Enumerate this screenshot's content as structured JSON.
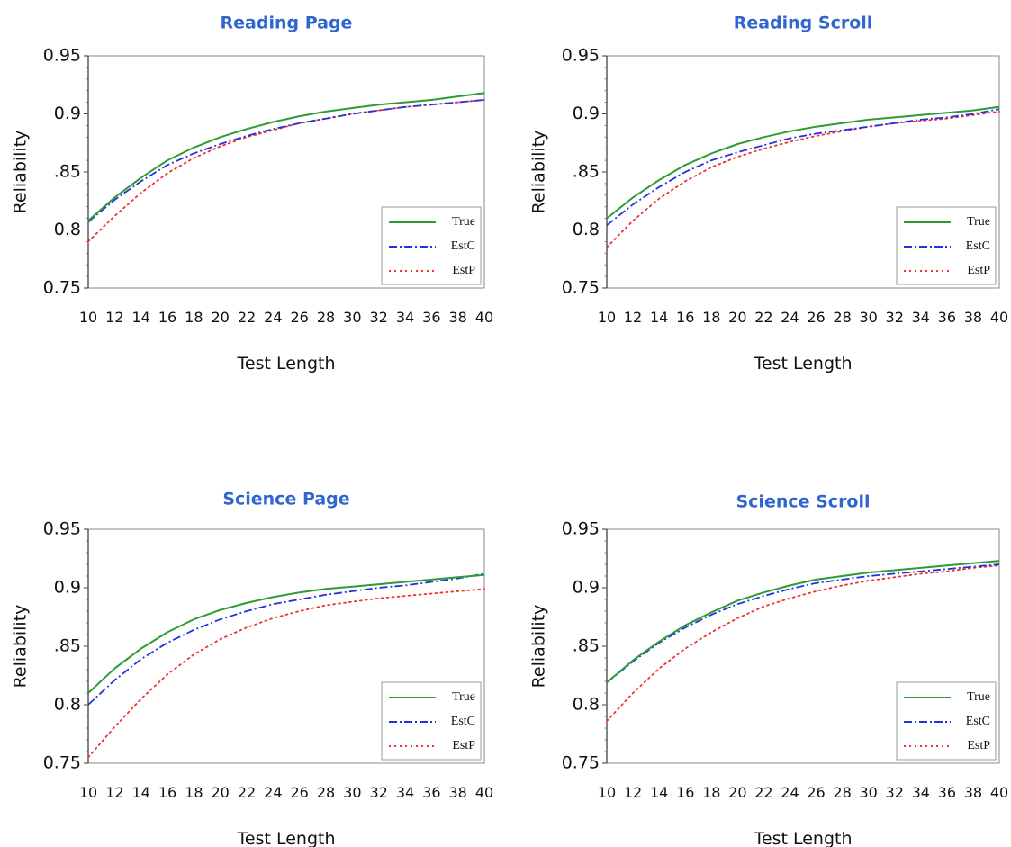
{
  "chart_data": [
    {
      "type": "line",
      "title": "Reading Page",
      "xlabel": "Test Length",
      "ylabel": "Reliability",
      "x": [
        10,
        12,
        14,
        16,
        18,
        20,
        22,
        24,
        26,
        28,
        30,
        32,
        34,
        36,
        38,
        40
      ],
      "xlim": [
        10,
        40
      ],
      "ylim": [
        0.75,
        0.95
      ],
      "yticks": [
        "0.75",
        "0.8",
        ".85",
        "0.9",
        "0.95"
      ],
      "ytick_values": [
        0.75,
        0.8,
        0.85,
        0.9,
        0.95
      ],
      "grid": false,
      "legend_position": "bottom-right",
      "series": [
        {
          "name": "True",
          "color": "#2e9b34",
          "style": "solid",
          "values": [
            0.808,
            0.828,
            0.845,
            0.86,
            0.871,
            0.88,
            0.887,
            0.893,
            0.898,
            0.902,
            0.905,
            0.908,
            0.91,
            0.912,
            0.915,
            0.918
          ]
        },
        {
          "name": "EstC",
          "color": "#2233dd",
          "style": "dashdot",
          "values": [
            0.807,
            0.826,
            0.842,
            0.856,
            0.866,
            0.874,
            0.881,
            0.887,
            0.892,
            0.896,
            0.9,
            0.903,
            0.906,
            0.908,
            0.91,
            0.912
          ]
        },
        {
          "name": "EstP",
          "color": "#ee3333",
          "style": "dotted",
          "values": [
            0.79,
            0.812,
            0.832,
            0.849,
            0.862,
            0.872,
            0.88,
            0.886,
            0.892,
            0.896,
            0.9,
            0.903,
            0.906,
            0.908,
            0.91,
            0.912
          ]
        }
      ]
    },
    {
      "type": "line",
      "title": "Reading Scroll",
      "xlabel": "Test Length",
      "ylabel": "Reliability",
      "x": [
        10,
        12,
        14,
        16,
        18,
        20,
        22,
        24,
        26,
        28,
        30,
        32,
        34,
        36,
        38,
        40
      ],
      "xlim": [
        10,
        40
      ],
      "ylim": [
        0.75,
        0.95
      ],
      "yticks": [
        "0.75",
        "0.8",
        ".85",
        "0.9",
        "0.95"
      ],
      "ytick_values": [
        0.75,
        0.8,
        0.85,
        0.9,
        0.95
      ],
      "grid": false,
      "legend_position": "bottom-right",
      "series": [
        {
          "name": "True",
          "color": "#2e9b34",
          "style": "solid",
          "values": [
            0.81,
            0.828,
            0.843,
            0.856,
            0.866,
            0.874,
            0.88,
            0.885,
            0.889,
            0.892,
            0.895,
            0.897,
            0.899,
            0.901,
            0.903,
            0.906
          ]
        },
        {
          "name": "EstC",
          "color": "#2233dd",
          "style": "dashdot",
          "values": [
            0.804,
            0.822,
            0.837,
            0.85,
            0.86,
            0.867,
            0.873,
            0.879,
            0.883,
            0.886,
            0.889,
            0.892,
            0.895,
            0.897,
            0.9,
            0.904
          ]
        },
        {
          "name": "EstP",
          "color": "#ee3333",
          "style": "dotted",
          "values": [
            0.785,
            0.808,
            0.827,
            0.842,
            0.854,
            0.863,
            0.87,
            0.876,
            0.881,
            0.885,
            0.889,
            0.892,
            0.894,
            0.896,
            0.899,
            0.902
          ]
        }
      ]
    },
    {
      "type": "line",
      "title": "Science Page",
      "xlabel": "Test Length",
      "ylabel": "Reliability",
      "x": [
        10,
        12,
        14,
        16,
        18,
        20,
        22,
        24,
        26,
        28,
        30,
        32,
        34,
        36,
        38,
        40
      ],
      "xlim": [
        10,
        40
      ],
      "ylim": [
        0.75,
        0.95
      ],
      "yticks": [
        "0.75",
        "0.8",
        ".85",
        "0.9",
        "0.95"
      ],
      "ytick_values": [
        0.75,
        0.8,
        0.85,
        0.9,
        0.95
      ],
      "grid": false,
      "legend_position": "bottom-right",
      "series": [
        {
          "name": "True",
          "color": "#2e9b34",
          "style": "solid",
          "values": [
            0.81,
            0.831,
            0.848,
            0.862,
            0.873,
            0.881,
            0.887,
            0.892,
            0.896,
            0.899,
            0.901,
            0.903,
            0.905,
            0.907,
            0.909,
            0.911
          ]
        },
        {
          "name": "EstC",
          "color": "#2233dd",
          "style": "dashdot",
          "values": [
            0.8,
            0.821,
            0.839,
            0.853,
            0.864,
            0.873,
            0.88,
            0.886,
            0.89,
            0.894,
            0.897,
            0.9,
            0.902,
            0.905,
            0.908,
            0.912
          ]
        },
        {
          "name": "EstP",
          "color": "#ee3333",
          "style": "dotted",
          "values": [
            0.755,
            0.781,
            0.805,
            0.826,
            0.843,
            0.856,
            0.866,
            0.874,
            0.88,
            0.885,
            0.888,
            0.891,
            0.893,
            0.895,
            0.897,
            0.899
          ]
        }
      ]
    },
    {
      "type": "line",
      "title": "Science Scroll",
      "xlabel": "Test Length",
      "ylabel": "Reliability",
      "x": [
        10,
        12,
        14,
        16,
        18,
        20,
        22,
        24,
        26,
        28,
        30,
        32,
        34,
        36,
        38,
        40
      ],
      "xlim": [
        10,
        40
      ],
      "ylim": [
        0.75,
        0.95
      ],
      "yticks": [
        "0.75",
        "0.8",
        ".85",
        "0.9",
        "0.95"
      ],
      "ytick_values": [
        0.75,
        0.8,
        0.85,
        0.9,
        0.95
      ],
      "grid": false,
      "legend_position": "bottom-right",
      "series": [
        {
          "name": "True",
          "color": "#2e9b34",
          "style": "solid",
          "values": [
            0.819,
            0.838,
            0.854,
            0.868,
            0.879,
            0.889,
            0.896,
            0.902,
            0.907,
            0.91,
            0.913,
            0.915,
            0.917,
            0.919,
            0.921,
            0.923
          ]
        },
        {
          "name": "EstC",
          "color": "#2233dd",
          "style": "dashdot",
          "values": [
            0.819,
            0.837,
            0.853,
            0.866,
            0.877,
            0.886,
            0.893,
            0.899,
            0.904,
            0.907,
            0.91,
            0.912,
            0.914,
            0.916,
            0.918,
            0.92
          ]
        },
        {
          "name": "EstP",
          "color": "#ee3333",
          "style": "dotted",
          "values": [
            0.786,
            0.81,
            0.831,
            0.848,
            0.862,
            0.874,
            0.884,
            0.891,
            0.897,
            0.902,
            0.906,
            0.909,
            0.912,
            0.914,
            0.917,
            0.919
          ]
        }
      ]
    }
  ]
}
